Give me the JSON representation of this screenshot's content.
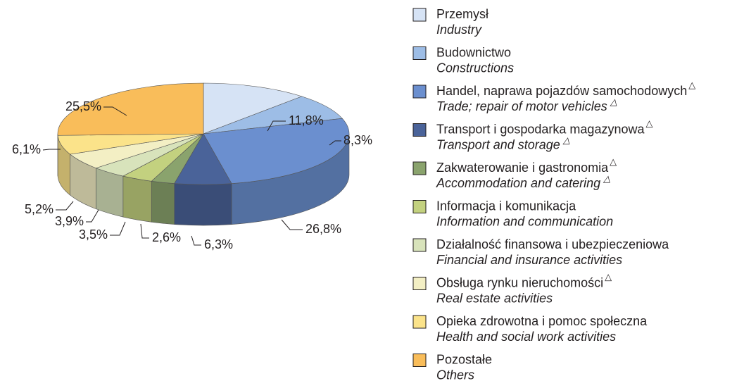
{
  "chart_data": {
    "type": "pie",
    "three_d": true,
    "categories": [
      "Przemysł",
      "Budownictwo",
      "Handel, naprawa pojazdów samochodowych",
      "Transport i gospodarka magazynowa",
      "Zakwaterowanie i gastronomia",
      "Informacja i komunikacja",
      "Działalność finansowa i ubezpieczeniowa",
      "Obsługa rynku nieruchomości",
      "Opieka zdrowotna i pomoc społeczna",
      "Pozostałe"
    ],
    "categories_en": [
      "Industry",
      "Constructions",
      "Trade; repair of motor vehicles",
      "Transport and storage",
      "Accommodation and catering",
      "Information and communication",
      "Financial and insurance activities",
      "Real estate activities",
      "Health and social work activities",
      "Others"
    ],
    "category_marks": [
      null,
      null,
      "△",
      "△",
      "△",
      null,
      null,
      "△",
      null,
      null
    ],
    "category_en_marks": [
      null,
      null,
      "△",
      "△",
      "△",
      null,
      null,
      null,
      null,
      null
    ],
    "values": [
      11.8,
      8.3,
      26.8,
      6.3,
      2.6,
      3.5,
      3.9,
      5.2,
      6.1,
      25.5
    ],
    "value_labels": [
      "11,8%",
      "8,3%",
      "26,8%",
      "6,3%",
      "2,6%",
      "3,5%",
      "3,9%",
      "5,2%",
      "6,1%",
      "25,5%"
    ],
    "colors": [
      "#d6e3f5",
      "#9dbde6",
      "#6b8fcf",
      "#4a6399",
      "#8aa36d",
      "#c3d17f",
      "#d8e3bb",
      "#f3efc4",
      "#fbe38a",
      "#f9bd5a"
    ]
  }
}
